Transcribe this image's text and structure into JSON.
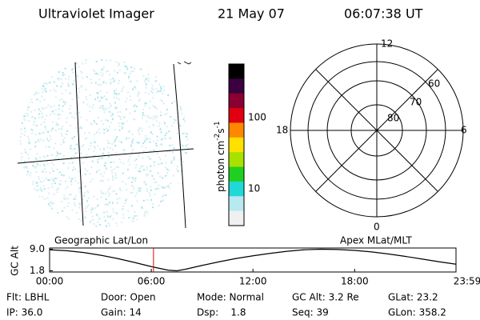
{
  "header": {
    "title": "Ultraviolet Imager",
    "date": "21 May 07",
    "time": "06:07:38 UT"
  },
  "colorbar": {
    "unit": [
      "photon cm",
      "-2",
      "s",
      "-1"
    ],
    "ticks": [
      "100",
      "10"
    ],
    "colors": [
      "#000000",
      "#3a0040",
      "#8a0030",
      "#e00010",
      "#ff8800",
      "#ffe000",
      "#a8e000",
      "#20d020",
      "#20d8d8",
      "#b8e8f0",
      "#f0f0f0"
    ]
  },
  "polar": {
    "hour_labels": {
      "top": "12",
      "left": "18",
      "right": "6",
      "bottom": "0"
    },
    "lat_labels": [
      "60",
      "70",
      "80"
    ]
  },
  "labels": {
    "left": "Geographic Lat/Lon",
    "right": "Apex MLat/MLT"
  },
  "chart_data": {
    "type": "line",
    "ylabel": "GC Alt",
    "x": [
      0,
      1,
      2,
      3,
      4,
      5,
      6,
      7,
      7.5,
      8,
      9,
      10,
      11,
      12,
      13,
      14,
      15,
      16,
      17,
      18,
      19,
      20,
      21,
      22,
      23,
      23.98
    ],
    "series": [
      {
        "color": "#000000",
        "values": [
          8.8,
          8.5,
          7.9,
          7.0,
          5.9,
          4.6,
          3.2,
          2.0,
          1.8,
          2.3,
          3.6,
          4.8,
          5.9,
          6.8,
          7.6,
          8.3,
          8.8,
          9.0,
          8.9,
          8.6,
          8.1,
          7.4,
          6.6,
          5.7,
          4.8,
          4.0
        ]
      }
    ],
    "xlim": [
      0,
      23.98
    ],
    "xticks": [
      {
        "value": 0,
        "label": "00:00"
      },
      {
        "value": 6,
        "label": "06:00"
      },
      {
        "value": 12,
        "label": "12:00"
      },
      {
        "value": 18,
        "label": "18:00"
      },
      {
        "value": 23.98,
        "label": "23:59"
      }
    ],
    "ylim": [
      1.4,
      9.4
    ],
    "yticks": [
      {
        "value": 9.0,
        "label": "9.0"
      },
      {
        "value": 1.8,
        "label": "1.8"
      }
    ],
    "marker": {
      "x": 6.13,
      "color": "#e00000"
    }
  },
  "footer": {
    "rows": [
      [
        "Flt: LBHL",
        "Door: Open",
        "Mode: Normal",
        "GC Alt: 3.2 Re",
        "GLat: 23.2"
      ],
      [
        "IP: 36.0",
        "Gain: 14",
        "Dsp:    1.8",
        "Seq: 39",
        "GLon: 358.2"
      ]
    ]
  }
}
